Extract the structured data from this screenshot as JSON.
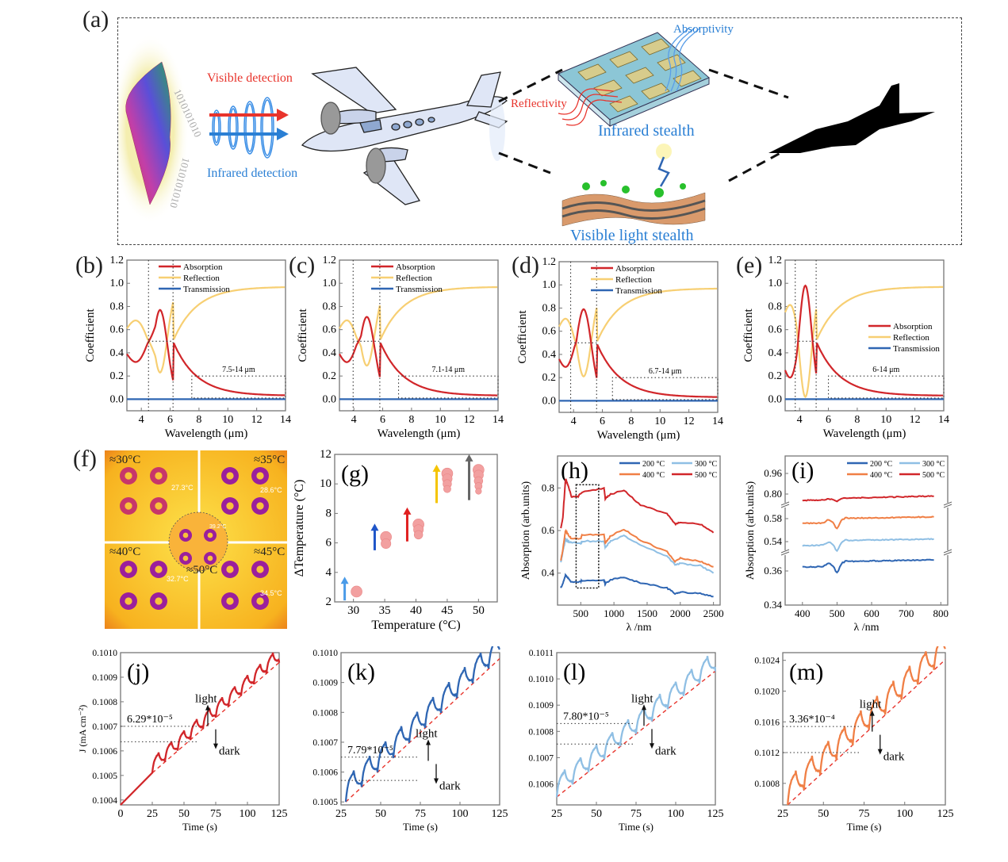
{
  "panel_labels": {
    "a": "(a)",
    "b": "(b)",
    "c": "(c)",
    "d": "(d)",
    "e": "(e)",
    "f": "(f)",
    "g": "(g)",
    "h": "(h)",
    "i": "(i)",
    "j": "(j)",
    "k": "(k)",
    "l": "(l)",
    "m": "(m)"
  },
  "schematic": {
    "visible_detection": "Visible detection",
    "infrared_detection": "Infrared detection",
    "absorptivity": "Absorptivity",
    "reflectivity": "Reflectivity",
    "infrared_stealth": "Infrared stealth",
    "visible_light_stealth": "Visible light stealth",
    "binary_top": "1010101010",
    "binary_bottom": "1010101010",
    "colors": {
      "red": "#e8342c",
      "blue": "#2a7fd4",
      "dash": "#111111"
    }
  },
  "thermal_image": {
    "quadrants": [
      {
        "label": "≈30°C",
        "reading": "27.3°C"
      },
      {
        "label": "≈35°C",
        "reading": "28.6°C"
      },
      {
        "label": "≈40°C",
        "reading": "32.7°C"
      },
      {
        "label": "≈45°C",
        "reading": "34.5°C"
      }
    ],
    "center": {
      "label": "≈50°C",
      "reading": "39.2°C"
    }
  },
  "chart_data": [
    {
      "id": "b",
      "type": "line",
      "xlabel": "Wavelength (μm)",
      "ylabel": "Coefficient",
      "xlim": [
        3,
        14
      ],
      "ylim": [
        -0.1,
        1.2
      ],
      "xticks": [
        4,
        6,
        8,
        10,
        12,
        14
      ],
      "yticks": [
        0.0,
        0.2,
        0.4,
        0.6,
        0.8,
        1.0,
        1.2
      ],
      "legend": [
        "Absorption",
        "Reflection",
        "Transmission"
      ],
      "legend_pos": "top-center",
      "peak": {
        "x": 5.3,
        "absorption": 0.77,
        "reflection_min": 0.22
      },
      "crossings": [
        4.5,
        6.2
      ],
      "band_label": "7.5-14 μm",
      "band_start": 7.5,
      "start": {
        "absorption": 0.39,
        "reflection": 0.61
      },
      "end": {
        "absorption": 0.03,
        "reflection": 0.97
      }
    },
    {
      "id": "c",
      "type": "line",
      "xlabel": "Wavelength (μm)",
      "ylabel": "Coefficient",
      "xlim": [
        3,
        14
      ],
      "ylim": [
        -0.1,
        1.2
      ],
      "xticks": [
        4,
        6,
        8,
        10,
        12,
        14
      ],
      "yticks": [
        0.0,
        0.2,
        0.4,
        0.6,
        0.8,
        1.0,
        1.2
      ],
      "legend": [
        "Absorption",
        "Reflection",
        "Transmission"
      ],
      "legend_pos": "top-center",
      "peak": {
        "x": 4.9,
        "absorption": 0.71,
        "reflection_min": 0.29
      },
      "crossings": [
        3.95,
        5.8
      ],
      "band_label": "7.1-14 μm",
      "band_start": 7.1,
      "start": {
        "absorption": 0.39,
        "reflection": 0.61
      },
      "end": {
        "absorption": 0.03,
        "reflection": 0.97
      }
    },
    {
      "id": "d",
      "type": "line",
      "xlabel": "Wavelength (μm)",
      "ylabel": "Coefficient",
      "xlim": [
        3,
        14
      ],
      "ylim": [
        -0.1,
        1.2
      ],
      "xticks": [
        4,
        6,
        8,
        10,
        12,
        14
      ],
      "yticks": [
        0.0,
        0.2,
        0.4,
        0.6,
        0.8,
        1.0,
        1.2
      ],
      "legend": [
        "Absorption",
        "Reflection",
        "Transmission"
      ],
      "legend_pos": "top-center",
      "peak": {
        "x": 4.7,
        "absorption": 0.79,
        "reflection_min": 0.21
      },
      "crossings": [
        3.8,
        5.6
      ],
      "band_label": "6.7-14 μm",
      "band_start": 6.7,
      "start": {
        "absorption": 0.36,
        "reflection": 0.64
      },
      "end": {
        "absorption": 0.03,
        "reflection": 0.97
      }
    },
    {
      "id": "e",
      "type": "line",
      "xlabel": "Wavelength (μm)",
      "ylabel": "Coefficient",
      "xlim": [
        3,
        14
      ],
      "ylim": [
        -0.1,
        1.2
      ],
      "xticks": [
        4,
        6,
        8,
        10,
        12,
        14
      ],
      "yticks": [
        0.0,
        0.2,
        0.4,
        0.6,
        0.8,
        1.0,
        1.2
      ],
      "legend": [
        "Absorption",
        "Reflection",
        "Transmission"
      ],
      "legend_pos": "right",
      "peak": {
        "x": 4.4,
        "absorption": 0.98,
        "reflection_min": 0.02
      },
      "crossings": [
        3.7,
        5.15
      ],
      "band_label": "6-14 μm",
      "band_start": 6.0,
      "start": {
        "absorption": 0.25,
        "reflection": 0.75
      },
      "end": {
        "absorption": 0.03,
        "reflection": 0.97
      }
    },
    {
      "id": "g",
      "type": "scatter",
      "xlabel": "Temperature (°C)",
      "ylabel": "ΔTemperature (°C)",
      "xlim": [
        27,
        53
      ],
      "ylim": [
        2,
        12
      ],
      "xticks": [
        30,
        35,
        40,
        45,
        50
      ],
      "yticks": [
        2,
        4,
        6,
        8,
        10,
        12
      ],
      "points": [
        {
          "x": 30.5,
          "y": [
            2.7
          ]
        },
        {
          "x": 35.2,
          "y": [
            6.4,
            5.95
          ]
        },
        {
          "x": 40.4,
          "y": [
            7.25,
            6.9,
            6.55
          ]
        },
        {
          "x": 45,
          "y": [
            10.7,
            10.35,
            10.0,
            9.65
          ]
        },
        {
          "x": 50,
          "y": [
            10.95,
            10.6,
            10.2,
            9.85,
            9.5
          ]
        }
      ],
      "arrows": [
        {
          "x": 28.6,
          "y0": 2.1,
          "y1": 3.6,
          "color": "#4a9be8"
        },
        {
          "x": 33.4,
          "y0": 5.5,
          "y1": 7.2,
          "color": "#1f55c8"
        },
        {
          "x": 38.6,
          "y0": 6.1,
          "y1": 8.3,
          "color": "#e02020"
        },
        {
          "x": 43.3,
          "y0": 8.7,
          "y1": 11.2,
          "color": "#f5c400"
        },
        {
          "x": 48.5,
          "y0": 8.9,
          "y1": 11.9,
          "color": "#666666"
        }
      ]
    },
    {
      "id": "h",
      "type": "line",
      "xlabel": "λ /nm",
      "ylabel": "Absorption (arb.units)",
      "xlim": [
        150,
        2600
      ],
      "ylim": [
        0.25,
        0.95
      ],
      "xticks": [
        500,
        1000,
        1500,
        2000,
        2500
      ],
      "yticks": [
        0.4,
        0.6,
        0.8
      ],
      "legend_pos": "top-right",
      "series": [
        {
          "name": "200 °C",
          "color": "#2f66b3",
          "points": [
            [
              200,
              0.33
            ],
            [
              230,
              0.35
            ],
            [
              270,
              0.39
            ],
            [
              300,
              0.38
            ],
            [
              350,
              0.36
            ],
            [
              500,
              0.36
            ],
            [
              520,
              0.365
            ],
            [
              850,
              0.365
            ],
            [
              870,
              0.35
            ],
            [
              950,
              0.37
            ],
            [
              1150,
              0.38
            ],
            [
              1400,
              0.355
            ],
            [
              1800,
              0.33
            ],
            [
              1920,
              0.305
            ],
            [
              2000,
              0.31
            ],
            [
              2300,
              0.305
            ],
            [
              2500,
              0.29
            ]
          ]
        },
        {
          "name": "300 °C",
          "color": "#8fbfe4",
          "points": [
            [
              200,
              0.45
            ],
            [
              230,
              0.5
            ],
            [
              270,
              0.56
            ],
            [
              300,
              0.55
            ],
            [
              350,
              0.545
            ],
            [
              500,
              0.54
            ],
            [
              520,
              0.55
            ],
            [
              850,
              0.55
            ],
            [
              870,
              0.52
            ],
            [
              950,
              0.55
            ],
            [
              1150,
              0.575
            ],
            [
              1400,
              0.53
            ],
            [
              1800,
              0.48
            ],
            [
              1920,
              0.44
            ],
            [
              2000,
              0.445
            ],
            [
              2300,
              0.435
            ],
            [
              2500,
              0.4
            ]
          ]
        },
        {
          "name": "400 °C",
          "color": "#f07f45",
          "points": [
            [
              200,
              0.46
            ],
            [
              230,
              0.51
            ],
            [
              270,
              0.6
            ],
            [
              300,
              0.585
            ],
            [
              350,
              0.565
            ],
            [
              500,
              0.56
            ],
            [
              520,
              0.58
            ],
            [
              850,
              0.58
            ],
            [
              870,
              0.54
            ],
            [
              950,
              0.575
            ],
            [
              1150,
              0.605
            ],
            [
              1400,
              0.555
            ],
            [
              1800,
              0.5
            ],
            [
              1920,
              0.455
            ],
            [
              2000,
              0.47
            ],
            [
              2300,
              0.455
            ],
            [
              2500,
              0.43
            ]
          ]
        },
        {
          "name": "500 °C",
          "color": "#d1262a",
          "points": [
            [
              200,
              0.61
            ],
            [
              230,
              0.66
            ],
            [
              270,
              0.84
            ],
            [
              300,
              0.82
            ],
            [
              360,
              0.76
            ],
            [
              460,
              0.76
            ],
            [
              520,
              0.78
            ],
            [
              850,
              0.8
            ],
            [
              870,
              0.75
            ],
            [
              950,
              0.77
            ],
            [
              1150,
              0.79
            ],
            [
              1400,
              0.72
            ],
            [
              1800,
              0.68
            ],
            [
              1920,
              0.63
            ],
            [
              2000,
              0.64
            ],
            [
              2300,
              0.63
            ],
            [
              2500,
              0.59
            ]
          ]
        }
      ],
      "highlight_box": {
        "x0": 430,
        "x1": 770,
        "y0": 0.33,
        "y1": 0.815
      }
    },
    {
      "id": "i",
      "type": "line",
      "xlabel": "λ /nm",
      "ylabel": "Absorption (arb.units)",
      "xlim": [
        350,
        820
      ],
      "xticks": [
        400,
        500,
        600,
        700,
        800
      ],
      "yticks": [
        "0.34",
        "0.36",
        "0.54",
        "0.58",
        "0.80",
        "0.96"
      ],
      "axis_breaks": true,
      "legend_pos": "top-right",
      "series": [
        {
          "name": "200 °C",
          "color": "#2f66b3"
        },
        {
          "name": "300 °C",
          "color": "#8fbfe4"
        },
        {
          "name": "400 °C",
          "color": "#f07f45"
        },
        {
          "name": "500 °C",
          "color": "#d1262a"
        }
      ]
    },
    {
      "id": "j",
      "type": "line",
      "xlabel": "Time (s)",
      "ylabel": "J (mA cm⁻²)",
      "color": "#d1262a",
      "xlim": [
        0,
        125
      ],
      "ylim": [
        0.10038,
        0.101
      ],
      "xticks": [
        0,
        25,
        50,
        75,
        100,
        125
      ],
      "yticks": [
        "0.1004",
        "0.1005",
        "0.1006",
        "0.1007",
        "0.1008",
        "0.1009",
        "0.1010"
      ],
      "baseline": {
        "t0": 25,
        "j0": 0.10051,
        "t1": 125,
        "j1": 0.10096
      },
      "start": {
        "t": 0,
        "j": 0.10038
      },
      "pulse_period": 10,
      "pulse_amp": 6e-05,
      "annotation": "6.29*10⁻⁵",
      "levels": [
        0.1007,
        0.100637
      ],
      "light": "light",
      "dark": "dark"
    },
    {
      "id": "k",
      "type": "line",
      "xlabel": "Time (s)",
      "color": "#2f66b3",
      "xlim": [
        25,
        125
      ],
      "ylim": [
        0.10049,
        0.101
      ],
      "xticks": [
        25,
        50,
        75,
        100,
        125
      ],
      "yticks": [
        "0.1005",
        "0.1006",
        "0.1007",
        "0.1008",
        "0.1009",
        "0.1010"
      ],
      "baseline": {
        "t0": 28,
        "j0": 0.1005,
        "t1": 125,
        "j1": 0.10098
      },
      "pulse_period": 10,
      "pulse_amp": 7.8e-05,
      "annotation": "7.79*10⁻⁵",
      "levels": [
        0.10065,
        0.100572
      ],
      "light": "light",
      "dark": "dark"
    },
    {
      "id": "l",
      "type": "line",
      "xlabel": "Time (s)",
      "color": "#8fbfe4",
      "xlim": [
        25,
        125
      ],
      "ylim": [
        0.10052,
        0.1011
      ],
      "xticks": [
        25,
        50,
        75,
        100,
        125
      ],
      "yticks": [
        "0.1006",
        "0.1007",
        "0.1008",
        "0.1009",
        "0.1010",
        "0.1011"
      ],
      "baseline": {
        "t0": 25,
        "j0": 0.10055,
        "t1": 125,
        "j1": 0.10103
      },
      "pulse_period": 10,
      "pulse_amp": 7.8e-05,
      "annotation": "7.80*10⁻⁵",
      "levels": [
        0.10083,
        0.100752
      ],
      "light": "light",
      "dark": "dark"
    },
    {
      "id": "m",
      "type": "line",
      "xlabel": "Time (s)",
      "color": "#f07f45",
      "xlim": [
        25,
        125
      ],
      "ylim": [
        0.10052,
        0.1025
      ],
      "xticks": [
        25,
        50,
        75,
        100,
        125
      ],
      "yticks": [
        "0.1008",
        "0.1012",
        "0.1016",
        "0.1020",
        "0.1024"
      ],
      "baseline": {
        "t0": 28,
        "j0": 0.10052,
        "t1": 125,
        "j1": 0.10241
      },
      "pulse_period": 10,
      "pulse_amp": 0.00034,
      "annotation": "3.36*10⁻⁴",
      "levels": [
        0.10154,
        0.1012
      ],
      "light": "light",
      "dark": "dark"
    }
  ]
}
